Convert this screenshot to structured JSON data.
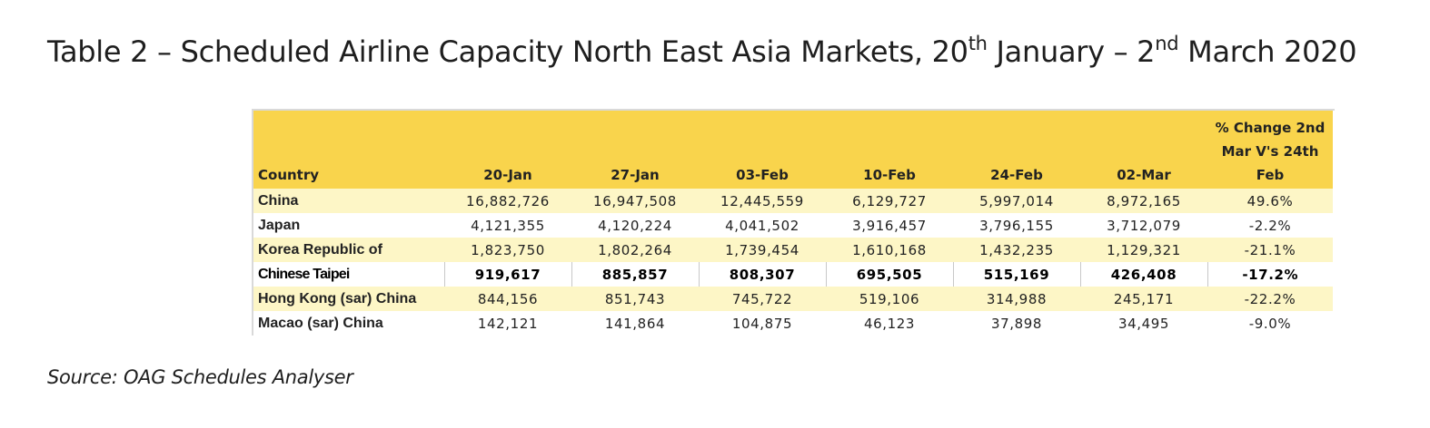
{
  "title": {
    "part1": "Table 2 – Scheduled Airline Capacity North East Asia Markets, 20",
    "sup1": "th",
    "part2": " January – 2",
    "sup2": "nd",
    "part3": " March 2020"
  },
  "table": {
    "headers": {
      "country": "Country",
      "col1": "20-Jan",
      "col2": "27-Jan",
      "col3": "03-Feb",
      "col4": "10-Feb",
      "col5": "24-Feb",
      "col6": "02-Mar",
      "pct_line1": "% Change 2nd",
      "pct_line2": "Mar V's 24th",
      "pct_line3": "Feb"
    },
    "rows": [
      {
        "country": "China",
        "c1": "16,882,726",
        "c2": "16,947,508",
        "c3": "12,445,559",
        "c4": "6,129,727",
        "c5": "5,997,014",
        "c6": "8,972,165",
        "pct": "49.6%"
      },
      {
        "country": "Japan",
        "c1": "4,121,355",
        "c2": "4,120,224",
        "c3": "4,041,502",
        "c4": "3,916,457",
        "c5": "3,796,155",
        "c6": "3,712,079",
        "pct": "-2.2%"
      },
      {
        "country": "Korea Republic of",
        "c1": "1,823,750",
        "c2": "1,802,264",
        "c3": "1,739,454",
        "c4": "1,610,168",
        "c5": "1,432,235",
        "c6": "1,129,321",
        "pct": "-21.1%"
      },
      {
        "country": "Chinese Taipei",
        "c1": "919,617",
        "c2": "885,857",
        "c3": "808,307",
        "c4": "695,505",
        "c5": "515,169",
        "c6": "426,408",
        "pct": "-17.2%"
      },
      {
        "country": "Hong Kong (sar) China",
        "c1": "844,156",
        "c2": "851,743",
        "c3": "745,722",
        "c4": "519,106",
        "c5": "314,988",
        "c6": "245,171",
        "pct": "-22.2%"
      },
      {
        "country": "Macao (sar) China",
        "c1": "142,121",
        "c2": "141,864",
        "c3": "104,875",
        "c4": "46,123",
        "c5": "37,898",
        "c6": "34,495",
        "pct": "-9.0%"
      }
    ]
  },
  "source": "Source: OAG Schedules Analyser",
  "colors": {
    "header_bg": "#f9d44c",
    "band_bg": "#fdf6c6"
  }
}
